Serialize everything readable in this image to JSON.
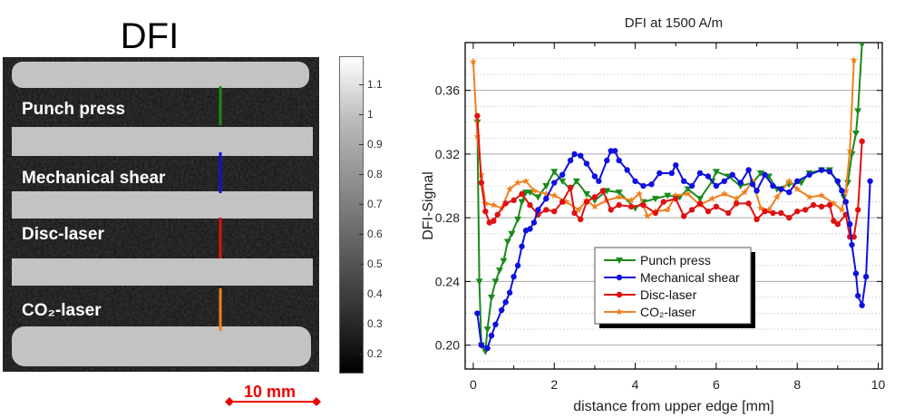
{
  "figure": {
    "title": "DFI",
    "labels": [
      "Punch press",
      "Mechanical shear",
      "Disc-laser",
      "CO₂-laser"
    ],
    "line_colors": [
      "#1a8a1a",
      "#1010e0",
      "#e01010",
      "#f08020"
    ],
    "colorbar_ticks": [
      "1.1",
      "1",
      "0.9",
      "0.8",
      "0.7",
      "0.6",
      "0.5",
      "0.4",
      "0.3",
      "0.2"
    ],
    "scale_bar": "10 mm"
  },
  "chart_data": {
    "type": "line",
    "title": "DFI at 1500 A/m",
    "xlabel": "distance from upper edge [mm]",
    "ylabel": "DFI-Signal",
    "xlim": [
      -0.2,
      10.1
    ],
    "ylim": [
      0.185,
      0.39
    ],
    "xticks": [
      "0",
      "2",
      "4",
      "6",
      "8",
      "10"
    ],
    "yticks": [
      "0.20",
      "0.24",
      "0.28",
      "0.32",
      "0.36"
    ],
    "grid": true,
    "legend": "center",
    "series": [
      {
        "name": "Punch press",
        "color": "#1a8a1a",
        "marker": "triangle-down",
        "x": [
          0.1,
          0.15,
          0.2,
          0.3,
          0.35,
          0.45,
          0.55,
          0.65,
          0.75,
          0.85,
          0.95,
          1.1,
          1.2,
          1.3,
          1.4,
          1.6,
          1.8,
          2.0,
          2.2,
          2.4,
          2.55,
          2.8,
          3.0,
          3.3,
          3.6,
          4.0,
          4.2,
          4.5,
          4.8,
          5.1,
          5.3,
          5.6,
          5.9,
          6.0,
          6.3,
          6.6,
          6.9,
          7.1,
          7.3,
          7.5,
          7.8,
          8.1,
          8.3,
          8.6,
          8.8,
          9.0,
          9.15,
          9.25,
          9.35,
          9.45,
          9.5,
          9.6
        ],
        "y": [
          0.34,
          0.24,
          0.2,
          0.196,
          0.21,
          0.23,
          0.24,
          0.247,
          0.253,
          0.265,
          0.27,
          0.279,
          0.29,
          0.296,
          0.296,
          0.293,
          0.3,
          0.309,
          0.303,
          0.298,
          0.303,
          0.295,
          0.291,
          0.297,
          0.296,
          0.286,
          0.29,
          0.292,
          0.294,
          0.293,
          0.298,
          0.292,
          0.303,
          0.309,
          0.306,
          0.3,
          0.302,
          0.308,
          0.306,
          0.298,
          0.301,
          0.302,
          0.308,
          0.31,
          0.31,
          0.302,
          0.293,
          0.302,
          0.32,
          0.333,
          0.347,
          0.389
        ]
      },
      {
        "name": "Mechanical shear",
        "color": "#1010e0",
        "marker": "circle",
        "x": [
          0.1,
          0.2,
          0.35,
          0.45,
          0.55,
          0.7,
          0.8,
          0.9,
          1.0,
          1.1,
          1.2,
          1.3,
          1.4,
          1.5,
          1.6,
          1.8,
          2.0,
          2.2,
          2.4,
          2.5,
          2.65,
          2.8,
          3.0,
          3.1,
          3.3,
          3.4,
          3.5,
          3.6,
          3.8,
          4.0,
          4.2,
          4.4,
          4.6,
          4.9,
          5.0,
          5.2,
          5.4,
          5.6,
          5.8,
          6.0,
          6.2,
          6.4,
          6.6,
          6.8,
          6.9,
          7.0,
          7.2,
          7.4,
          7.6,
          7.8,
          8.0,
          8.3,
          8.6,
          8.8,
          9.0,
          9.1,
          9.2,
          9.3,
          9.35,
          9.45,
          9.5,
          9.6,
          9.7,
          9.8
        ],
        "y": [
          0.22,
          0.2,
          0.198,
          0.206,
          0.213,
          0.222,
          0.227,
          0.233,
          0.243,
          0.25,
          0.262,
          0.272,
          0.273,
          0.277,
          0.285,
          0.292,
          0.302,
          0.307,
          0.316,
          0.32,
          0.319,
          0.314,
          0.306,
          0.303,
          0.316,
          0.322,
          0.322,
          0.316,
          0.31,
          0.303,
          0.3,
          0.301,
          0.308,
          0.308,
          0.313,
          0.303,
          0.3,
          0.308,
          0.306,
          0.3,
          0.303,
          0.307,
          0.302,
          0.31,
          0.301,
          0.297,
          0.307,
          0.3,
          0.298,
          0.296,
          0.303,
          0.307,
          0.31,
          0.309,
          0.303,
          0.297,
          0.29,
          0.276,
          0.263,
          0.245,
          0.231,
          0.225,
          0.243,
          0.303
        ]
      },
      {
        "name": "Disc-laser",
        "color": "#e01010",
        "marker": "circle",
        "x": [
          0.1,
          0.2,
          0.3,
          0.4,
          0.5,
          0.6,
          0.8,
          1.0,
          1.2,
          1.4,
          1.6,
          1.8,
          2.0,
          2.2,
          2.4,
          2.5,
          2.65,
          2.8,
          3.0,
          3.2,
          3.4,
          3.6,
          3.9,
          4.2,
          4.5,
          4.7,
          5.0,
          5.2,
          5.4,
          5.6,
          5.8,
          6.0,
          6.3,
          6.5,
          6.8,
          7.0,
          7.2,
          7.4,
          7.6,
          7.8,
          8.0,
          8.2,
          8.4,
          8.6,
          8.8,
          8.9,
          9.0,
          9.2,
          9.3,
          9.4,
          9.5,
          9.6
        ],
        "y": [
          0.344,
          0.302,
          0.284,
          0.277,
          0.278,
          0.282,
          0.289,
          0.291,
          0.295,
          0.288,
          0.282,
          0.285,
          0.284,
          0.29,
          0.299,
          0.283,
          0.279,
          0.29,
          0.293,
          0.297,
          0.285,
          0.288,
          0.287,
          0.288,
          0.283,
          0.29,
          0.292,
          0.281,
          0.285,
          0.289,
          0.284,
          0.287,
          0.283,
          0.289,
          0.289,
          0.279,
          0.284,
          0.283,
          0.283,
          0.28,
          0.284,
          0.285,
          0.288,
          0.287,
          0.288,
          0.278,
          0.276,
          0.282,
          0.268,
          0.268,
          0.285,
          0.328
        ]
      },
      {
        "name": "CO₂-laser",
        "color": "#f08020",
        "marker": "star",
        "x": [
          0.0,
          0.1,
          0.2,
          0.3,
          0.5,
          0.7,
          0.9,
          1.1,
          1.3,
          1.5,
          1.8,
          2.0,
          2.3,
          2.6,
          2.8,
          3.0,
          3.3,
          3.6,
          3.9,
          4.1,
          4.3,
          4.5,
          4.8,
          5.0,
          5.3,
          5.6,
          5.9,
          6.2,
          6.5,
          6.7,
          6.9,
          7.1,
          7.3,
          7.5,
          7.8,
          8.0,
          8.3,
          8.6,
          8.9,
          9.1,
          9.2,
          9.3,
          9.4
        ],
        "y": [
          0.378,
          0.331,
          0.307,
          0.289,
          0.288,
          0.286,
          0.298,
          0.302,
          0.303,
          0.297,
          0.295,
          0.294,
          0.29,
          0.285,
          0.291,
          0.287,
          0.291,
          0.293,
          0.291,
          0.295,
          0.281,
          0.284,
          0.285,
          0.294,
          0.295,
          0.288,
          0.292,
          0.295,
          0.292,
          0.296,
          0.303,
          0.286,
          0.285,
          0.293,
          0.303,
          0.298,
          0.293,
          0.294,
          0.289,
          0.285,
          0.297,
          0.322,
          0.379
        ]
      }
    ]
  }
}
